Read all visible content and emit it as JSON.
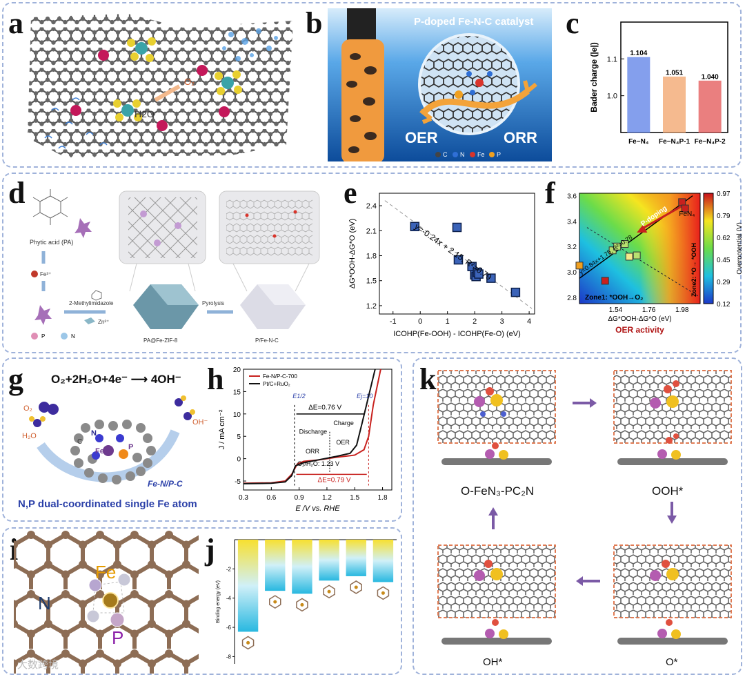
{
  "labels": {
    "a": "a",
    "b": "b",
    "c": "c",
    "d": "d",
    "e": "e",
    "f": "f",
    "g": "g",
    "h": "h",
    "i": "i",
    "j": "j",
    "k": "k"
  },
  "panel_a": {
    "o2": "O₂",
    "h2o": "H2O"
  },
  "panel_b": {
    "title": "P-doped Fe-N-C catalyst",
    "oer": "OER",
    "orr": "ORR",
    "legend": [
      "C",
      "N",
      "Fe",
      "P"
    ],
    "colors": {
      "C": "#444444",
      "N": "#2f6fd6",
      "Fe": "#d9342b",
      "P": "#f0a020"
    }
  },
  "panel_d": {
    "phytic": "Phytic acid (PA)",
    "fe3": "Fe³⁺",
    "mim": "2-Methylimidazole",
    "zn": "Zn²⁺",
    "pyrolysis": "Pyrolysis",
    "pa_zif": "PA@Fe-ZIF-8",
    "pfenc": "P/Fe-N-C",
    "legend_p": "P",
    "legend_n": "N"
  },
  "panel_g": {
    "equation": "O₂+2H₂O+4e⁻ ⟶ 4OH⁻",
    "o2": "O₂",
    "h2o": "H₂O",
    "oh": "OH⁻",
    "c": "C",
    "n": "N",
    "fe": "Fe",
    "p": "P",
    "name": "Fe-N/P-C",
    "caption": "N,P dual-coordinated single Fe atom"
  },
  "panel_i": {
    "fe": "Fe",
    "n": "N",
    "p": "P",
    "watermark": "大数跨境"
  },
  "panel_k": {
    "state1": "O-FeN₃-PC₂N",
    "state2": "OOH*",
    "state3": "OH*",
    "state4": "O*"
  },
  "chart_data": [
    {
      "id": "c",
      "type": "bar",
      "ylabel": "Bader charge (|e|)",
      "ylim": [
        0.9,
        1.2
      ],
      "yticks": [
        "1.0",
        "1.1"
      ],
      "categories": [
        "Fe−N₄",
        "Fe−N₄P-1",
        "Fe−N₄P-2"
      ],
      "values": [
        1.104,
        1.051,
        1.04
      ],
      "value_labels": [
        "1.104",
        "1.051",
        "1.040"
      ],
      "colors": [
        "#5b7fe8",
        "#f2a36a",
        "#e45555"
      ]
    },
    {
      "id": "e",
      "type": "scatter",
      "xlabel": "ICOHP(Fe-OOH) - ICOHP(Fe-O) (eV)",
      "ylabel": "ΔG*OOH-ΔG*O (eV)",
      "xlim": [
        -1.5,
        4.2
      ],
      "ylim": [
        1.1,
        2.55
      ],
      "xticks": [
        "-1",
        "0",
        "1",
        "2",
        "3",
        "4"
      ],
      "yticks": [
        "1.2",
        "1.5",
        "1.8",
        "2.1",
        "2.4"
      ],
      "x": [
        -0.2,
        1.35,
        1.4,
        1.9,
        2.0,
        2.05,
        2.1,
        2.15,
        2.6,
        3.5
      ],
      "y": [
        2.15,
        2.14,
        1.75,
        1.67,
        1.57,
        1.55,
        1.6,
        1.58,
        1.53,
        1.36
      ],
      "fit_text": "y=-0.24x + 2.15, R²=0.79"
    },
    {
      "id": "f",
      "type": "heatmap",
      "xlabel": "ΔG*OOH-ΔG*O (eV)",
      "ylabel": "ΔG*OH (eV)",
      "caption": "OER activity",
      "xticks": [
        "1.54",
        "1.76",
        "1.98"
      ],
      "yticks": [
        "2.8",
        "3.0",
        "3.2",
        "3.4",
        "3.6"
      ],
      "colorbar_label": "Overpotential (V)",
      "colorbar_ticks": [
        "0.97",
        "0.79",
        "0.62",
        "0.45",
        "0.29",
        "0.12"
      ],
      "annotations": {
        "pdoping": "P-doping",
        "fen4": "FeN₄",
        "fit": "y=0.84x+1.75, R²=0.78",
        "zone1": "Zone1: *OOH→O₂",
        "zone2": "Zone2: *O→ *OOH"
      },
      "x": [
        1.3,
        1.47,
        1.52,
        1.55,
        1.6,
        1.63,
        1.68,
        1.98,
        2.0
      ],
      "y": [
        3.05,
        2.93,
        3.17,
        3.2,
        3.22,
        3.12,
        3.13,
        3.55,
        3.5
      ]
    },
    {
      "id": "h",
      "type": "line",
      "xlabel": "E /V vs. RHE",
      "ylabel": "J / mA cm⁻²",
      "xlim": [
        0.3,
        1.9
      ],
      "ylim": [
        -7,
        20
      ],
      "xticks": [
        "0.3",
        "0.6",
        "0.9",
        "1.2",
        "1.5",
        "1.8"
      ],
      "yticks": [
        "-5",
        "0",
        "5",
        "10",
        "15",
        "20"
      ],
      "series": [
        {
          "name": "Fe-N/P-C-700",
          "color": "#c8211e",
          "x": [
            0.3,
            0.6,
            0.75,
            0.82,
            0.88,
            0.95,
            1.1,
            1.3,
            1.5,
            1.6,
            1.65,
            1.7,
            1.78
          ],
          "y": [
            -5.5,
            -5.4,
            -5.0,
            -3.5,
            -1.2,
            -0.6,
            -0.3,
            0.3,
            0.8,
            2.0,
            5.0,
            12.0,
            20.0
          ]
        },
        {
          "name": "Pt/C+RuO₂",
          "color": "#111111",
          "x": [
            0.3,
            0.6,
            0.75,
            0.82,
            0.86,
            0.95,
            1.1,
            1.3,
            1.45,
            1.52,
            1.58,
            1.65,
            1.72
          ],
          "y": [
            -5.6,
            -5.5,
            -5.2,
            -3.8,
            -1.6,
            -0.9,
            -0.3,
            0.5,
            1.2,
            3.0,
            8.0,
            14.0,
            20.0
          ]
        }
      ],
      "annotations": {
        "e12": "E1/2",
        "ej10": "Ej=10",
        "de1": "ΔE=0.76 V",
        "de2": "ΔE=0.79 V",
        "discharge": "Discharge",
        "charge": "Charge",
        "orr": "ORR",
        "oer": "OER",
        "o2h2o": "O₂/H₂O: 1.23 V"
      }
    },
    {
      "id": "j",
      "type": "bar",
      "ylabel": "Binding energy (eV)",
      "ylim": [
        -8.5,
        0
      ],
      "yticks": [
        "-2",
        "-4",
        "-6",
        "-8"
      ],
      "values": [
        -6.3,
        -3.5,
        -3.7,
        -2.8,
        -2.5,
        -2.9
      ]
    }
  ]
}
